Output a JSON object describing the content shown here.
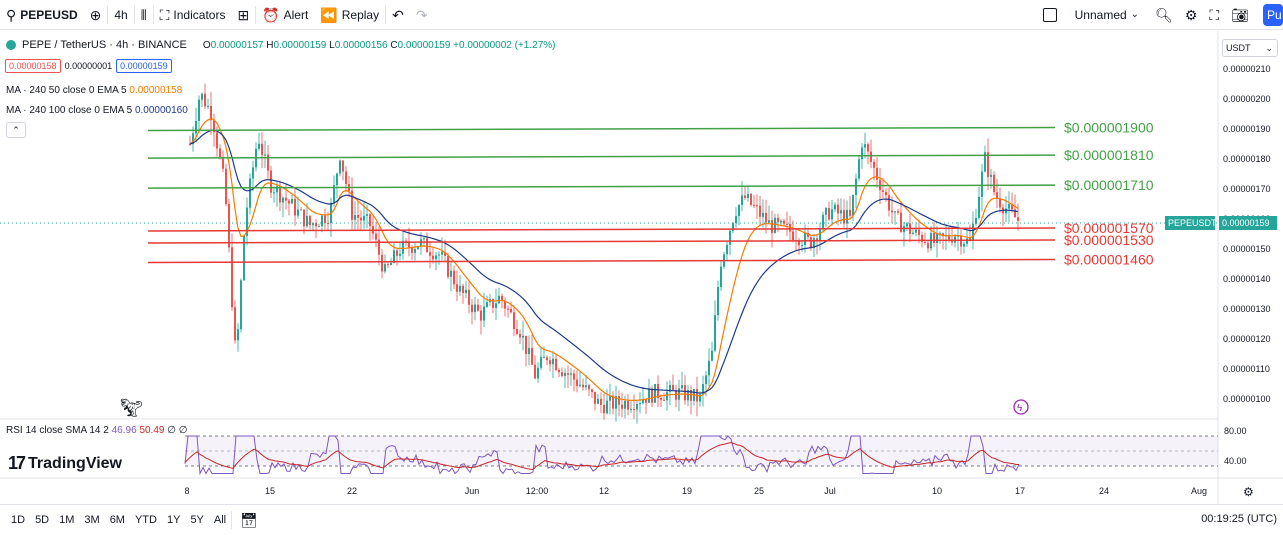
{
  "toolbar": {
    "symbol": "PEPEUSD",
    "interval": "4h",
    "indicators_label": "Indicators",
    "alert_label": "Alert",
    "replay_label": "Replay",
    "layout_name": "Unnamed",
    "publish_label": "Pu"
  },
  "legend": {
    "symbol_title": "PEPE / TetherUS · 4h · BINANCE",
    "o_label": "O",
    "o_value": "0.00000157",
    "h_label": "H",
    "h_value": "0.00000159",
    "l_label": "L",
    "l_value": "0.00000156",
    "c_label": "C",
    "c_value": "0.00000159",
    "change": "+0.00000002 (+1.27%)",
    "sell_price": "0.00000158",
    "spread": "0.00000001",
    "buy_price": "0.00000159",
    "ma50_label": "MA · 240 50 close 0 EMA 5",
    "ma50_value": "0.00000158",
    "ma100_label": "MA · 240 100 close 0 EMA 5",
    "ma100_value": "0.00000160",
    "rsi_label": "RSI 14 close SMA 14 2",
    "rsi_value": "46.96",
    "rsi_ma_value": "50.49",
    "rsi_extra": "∅ ∅"
  },
  "price_axis": {
    "currency": "USDT",
    "ticks": [
      "0.00000210",
      "0.00000200",
      "0.00000190",
      "0.00000180",
      "0.00000170",
      "0.00000160",
      "0.00000150",
      "0.00000140",
      "0.00000130",
      "0.00000120",
      "0.00000110",
      "0.00000100"
    ],
    "symbol_tag": "PEPEUSDT",
    "current_price": "0.00000159",
    "rsi_ticks": [
      "80.00",
      "40.00"
    ]
  },
  "levels": [
    {
      "label": "$0.000001900",
      "price": 1.905,
      "color": "#43a047"
    },
    {
      "label": "$0.000001810",
      "price": 1.813,
      "color": "#43a047"
    },
    {
      "label": "$0.000001710",
      "price": 1.713,
      "color": "#43a047"
    },
    {
      "label": "$0.000001570",
      "price": 1.57,
      "color": "#e53935"
    },
    {
      "label": "$0.000001530",
      "price": 1.53,
      "color": "#e53935"
    },
    {
      "label": "$0.000001460",
      "price": 1.465,
      "color": "#e53935"
    }
  ],
  "time_axis": {
    "labels": [
      "8",
      "15",
      "22",
      "Jun",
      "12:00",
      "12",
      "19",
      "25",
      "Jul",
      "10",
      "17",
      "24",
      "Aug"
    ]
  },
  "ranges": [
    "1D",
    "5D",
    "1M",
    "3M",
    "6M",
    "YTD",
    "1Y",
    "5Y",
    "All"
  ],
  "clock": "00:19:25 (UTC)",
  "brand": "TradingView",
  "colors": {
    "up": "#26a69a",
    "down": "#ef5350",
    "ma50": "#f57c00",
    "ma100": "#1e3a8a",
    "rsi": "#7e57c2",
    "rsi_ma": "#c62828",
    "accent": "#2962ff"
  },
  "chart_data": {
    "type": "line",
    "series": [
      {
        "name": "PEPEUSDT",
        "x": [
          "8",
          "15",
          "22",
          "Jun",
          "12:00",
          "12",
          "19",
          "25",
          "Jul",
          "10",
          "17"
        ],
        "values": [
          1.88,
          1.78,
          1.58,
          1.47,
          1.12,
          0.98,
          0.98,
          1.6,
          1.56,
          1.54,
          1.59
        ]
      }
    ],
    "ylim": [
      0.95,
      2.12
    ],
    "rsi": [
      40,
      55,
      48,
      42,
      45,
      38,
      42,
      78,
      50,
      44,
      47
    ]
  }
}
